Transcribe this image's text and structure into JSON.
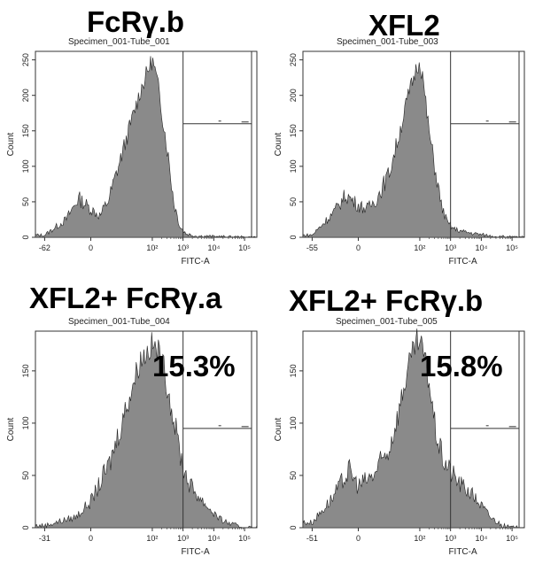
{
  "panels": [
    {
      "heading": "FcRγ.b",
      "specimen": "Specimen_001-Tube_001",
      "percent": "",
      "chart_data": {
        "type": "area",
        "title": "Specimen_001-Tube_001",
        "xlabel": "FITC-A",
        "ylabel": "Count",
        "x_scale": "biexponential",
        "x_ticks": [
          "-62",
          "0",
          "10²",
          "10³",
          "10⁴",
          "10⁵"
        ],
        "y_ticks": [
          "0",
          "50",
          "100",
          "150",
          "200",
          "250"
        ],
        "ylim": [
          0,
          262
        ],
        "gate": {
          "start_tick": "10³",
          "end": "max",
          "y": 160
        },
        "series": [
          {
            "x": [
              -1.5,
              -0.8,
              -0.4,
              0,
              0.3,
              0.6,
              1.0,
              1.3,
              1.6,
              1.9,
              2.0,
              2.1,
              2.2,
              2.3,
              2.5,
              2.7,
              2.9,
              3.1,
              3.4,
              4.0,
              5.0
            ],
            "y": [
              3,
              25,
              55,
              40,
              30,
              55,
              115,
              160,
              205,
              240,
              250,
              232,
              210,
              180,
              120,
              50,
              15,
              5,
              2,
              1,
              0
            ]
          }
        ]
      }
    },
    {
      "heading": "XFL2",
      "specimen": "Specimen_001-Tube_003",
      "percent": "",
      "chart_data": {
        "type": "area",
        "title": "Specimen_001-Tube_003",
        "xlabel": "FITC-A",
        "ylabel": "Count",
        "x_scale": "biexponential",
        "x_ticks": [
          "-55",
          "0",
          "10²",
          "10³",
          "10⁴",
          "10⁵"
        ],
        "y_ticks": [
          "0",
          "50",
          "100",
          "150",
          "200",
          "250"
        ],
        "ylim": [
          0,
          262
        ],
        "gate": {
          "start_tick": "10³",
          "end": "max",
          "y": 160
        },
        "series": [
          {
            "x": [
              -1.5,
              -0.8,
              -0.4,
              0,
              0.3,
              0.6,
              1.0,
              1.3,
              1.6,
              1.9,
              2.0,
              2.1,
              2.2,
              2.3,
              2.5,
              2.7,
              2.9,
              3.1,
              3.4,
              3.8,
              4.3,
              5.0
            ],
            "y": [
              3,
              35,
              60,
              45,
              40,
              55,
              90,
              140,
              195,
              240,
              248,
              225,
              185,
              150,
              95,
              45,
              20,
              12,
              8,
              5,
              2,
              0
            ]
          }
        ]
      }
    },
    {
      "heading": "XFL2+ FcRγ.a",
      "specimen": "Specimen_001-Tube_004",
      "percent": "15.3%",
      "chart_data": {
        "type": "area",
        "title": "Specimen_001-Tube_004",
        "xlabel": "FITC-A",
        "ylabel": "Count",
        "x_scale": "biexponential",
        "x_ticks": [
          "-31",
          "0",
          "10²",
          "10³",
          "10⁴",
          "10⁵"
        ],
        "y_ticks": [
          "0",
          "50",
          "100",
          "150"
        ],
        "ylim": [
          0,
          188
        ],
        "gate": {
          "start_tick": "10³",
          "end": "max",
          "y": 95
        },
        "annotation": "15.3%",
        "series": [
          {
            "x": [
              -1.5,
              -0.5,
              0,
              0.6,
              1.2,
              1.6,
              2.0,
              2.2,
              2.4,
              2.6,
              2.8,
              3.0,
              3.2,
              3.5,
              3.8,
              4.2,
              4.6,
              5.0
            ],
            "y": [
              2,
              10,
              25,
              60,
              120,
              160,
              175,
              168,
              150,
              118,
              88,
              58,
              42,
              30,
              20,
              8,
              3,
              0
            ]
          }
        ]
      }
    },
    {
      "heading": "XFL2+ FcRγ.b",
      "specimen": "Specimen_001-Tube_005",
      "percent": "15.8%",
      "chart_data": {
        "type": "area",
        "title": "Specimen_001-Tube_005",
        "xlabel": "FITC-A",
        "ylabel": "Count",
        "x_scale": "biexponential",
        "x_ticks": [
          "-51",
          "0",
          "10²",
          "10³",
          "10⁴",
          "10⁵"
        ],
        "y_ticks": [
          "0",
          "50",
          "100",
          "150"
        ],
        "ylim": [
          0,
          188
        ],
        "gate": {
          "start_tick": "10³",
          "end": "max",
          "y": 95
        },
        "annotation": "15.8%",
        "series": [
          {
            "x": [
              -1.5,
              -0.8,
              -0.3,
              0,
              0.5,
              1.0,
              1.3,
              1.6,
              1.9,
              2.1,
              2.3,
              2.5,
              2.7,
              2.9,
              3.1,
              3.3,
              3.6,
              3.9,
              4.3,
              4.7,
              5.0
            ],
            "y": [
              5,
              30,
              55,
              40,
              50,
              75,
              110,
              150,
              178,
              170,
              140,
              95,
              70,
              58,
              50,
              42,
              35,
              25,
              10,
              2,
              0
            ]
          }
        ]
      }
    }
  ]
}
